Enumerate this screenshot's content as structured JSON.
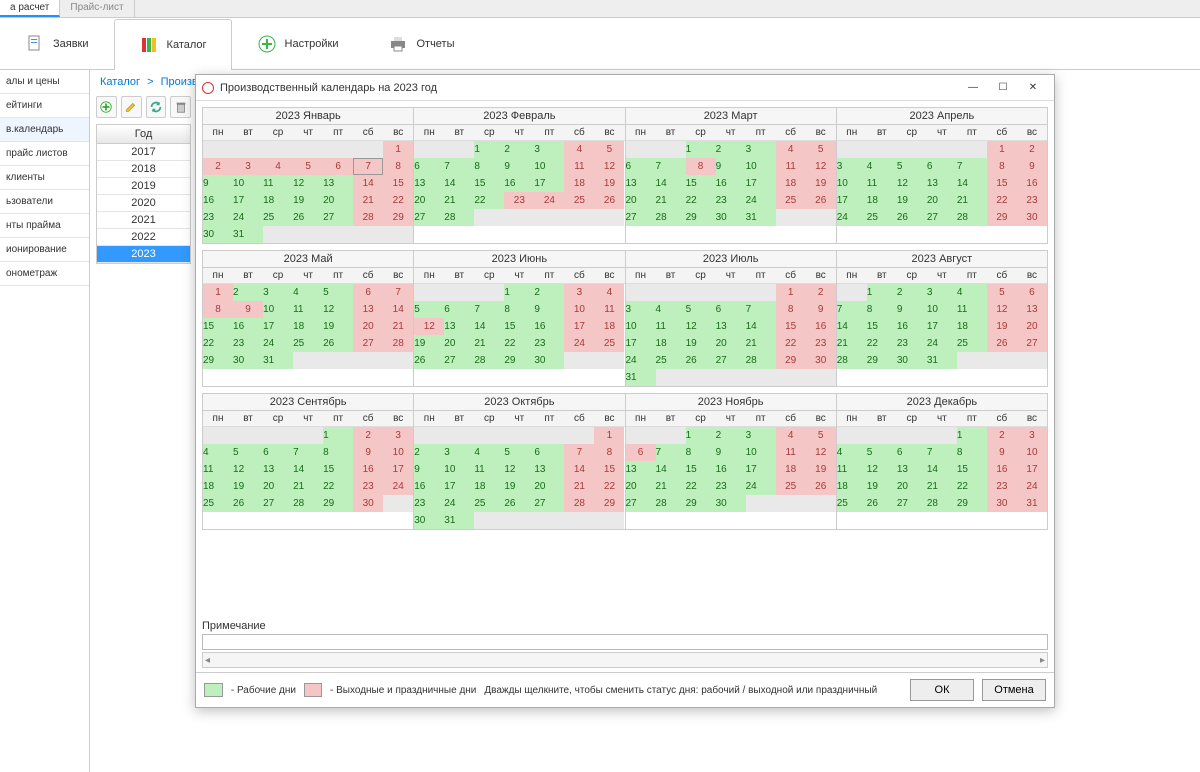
{
  "small_tabs": [
    "а расчет",
    "Прайс-лист"
  ],
  "active_small_tab": 0,
  "ribbon": [
    {
      "label": "Заявки",
      "icon": "document-icon"
    },
    {
      "label": "Каталог",
      "icon": "books-icon"
    },
    {
      "label": "Настройки",
      "icon": "plus-icon"
    },
    {
      "label": "Отчеты",
      "icon": "printer-icon"
    }
  ],
  "active_ribbon": 1,
  "left_nav": [
    "алы и цены",
    "ейтинги",
    "в.календарь",
    "прайс листов",
    "клиенты",
    "ьзователи",
    "нты прайма",
    "ионирование",
    "онометраж"
  ],
  "active_left_nav": 2,
  "breadcrumb": [
    "Каталог",
    "Производственный календарь"
  ],
  "toolbar_icons": [
    "add-icon",
    "edit-icon",
    "refresh-icon",
    "delete-icon"
  ],
  "year_header": "Год",
  "years": [
    "2017",
    "2018",
    "2019",
    "2020",
    "2021",
    "2022",
    "2023"
  ],
  "selected_year": "2023",
  "modal": {
    "title": "Производственный календарь на 2023 год",
    "weekdays": [
      "пн",
      "вт",
      "ср",
      "чт",
      "пт",
      "сб",
      "вс"
    ],
    "months": [
      "2023 Январь",
      "2023 Февраль",
      "2023 Март",
      "2023 Апрель",
      "2023 Май",
      "2023 Июнь",
      "2023 Июль",
      "2023 Август",
      "2023 Сентябрь",
      "2023 Октябрь",
      "2023 Ноябрь",
      "2023 Декабрь"
    ],
    "first_dow": [
      6,
      2,
      2,
      5,
      0,
      3,
      5,
      1,
      4,
      6,
      2,
      4
    ],
    "ndays": [
      31,
      28,
      31,
      30,
      31,
      30,
      31,
      31,
      30,
      31,
      30,
      31
    ],
    "holidays": {
      "0": [
        1,
        2,
        3,
        4,
        5,
        6,
        7,
        8
      ],
      "1": [
        23,
        24
      ],
      "2": [
        8
      ],
      "3": [],
      "4": [
        1,
        8,
        9
      ],
      "5": [
        12
      ],
      "7": [],
      "10": [
        6
      ],
      "11": []
    },
    "today": {
      "month": 0,
      "day": 7
    },
    "note_label": "Примечание",
    "legend_work": "- Рабочие дни",
    "legend_off": "- Выходные и праздничные дни",
    "hint": "Дважды щелкните, чтобы сменить статус дня: рабочий / выходной или праздничный",
    "ok": "ОК",
    "cancel": "Отмена"
  },
  "colors": {
    "work": "#bdf0bd",
    "off": "#f5c6c6",
    "accent": "#3399ff"
  }
}
